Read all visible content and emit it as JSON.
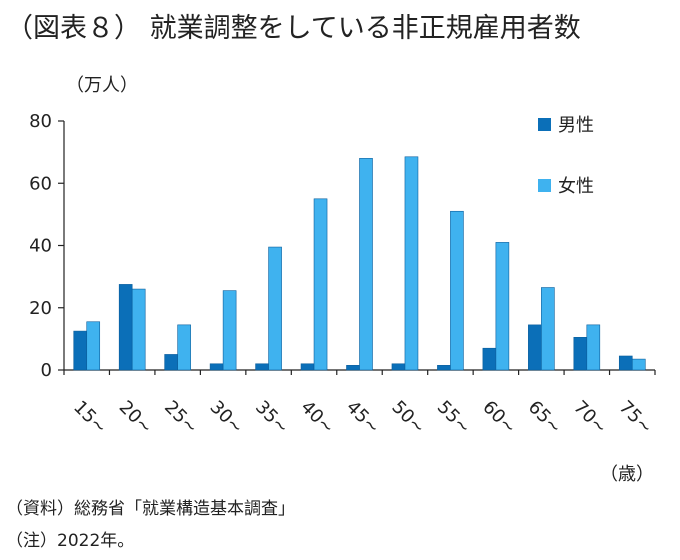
{
  "title": "（図表８） 就業調整をしている非正規雇用者数",
  "notes": {
    "source": "（資料）総務省「就業構造基本調査」",
    "note": "（注）2022年。"
  },
  "colors": {
    "male": "#0b6fb8",
    "female": "#3fb2ef",
    "axis": "#222222"
  },
  "chart_data": {
    "type": "bar",
    "y_unit_label": "（万人）",
    "x_unit_label": "（歳）",
    "categories": [
      "15~",
      "20~",
      "25~",
      "30~",
      "35~",
      "40~",
      "45~",
      "50~",
      "55~",
      "60~",
      "65~",
      "70~",
      "75~"
    ],
    "series": [
      {
        "name": "男性",
        "values": [
          12.5,
          27.5,
          5.0,
          2.0,
          2.0,
          2.0,
          1.5,
          2.0,
          1.5,
          7.0,
          14.5,
          10.5,
          4.5
        ]
      },
      {
        "name": "女性",
        "values": [
          15.5,
          26.0,
          14.5,
          25.5,
          39.5,
          55.0,
          68.0,
          68.5,
          51.0,
          41.0,
          26.5,
          14.5,
          3.5
        ]
      }
    ],
    "ylim": [
      0,
      80
    ],
    "yticks": [
      0,
      20,
      40,
      60,
      80
    ],
    "grid": false,
    "legend_position": "top-right"
  }
}
